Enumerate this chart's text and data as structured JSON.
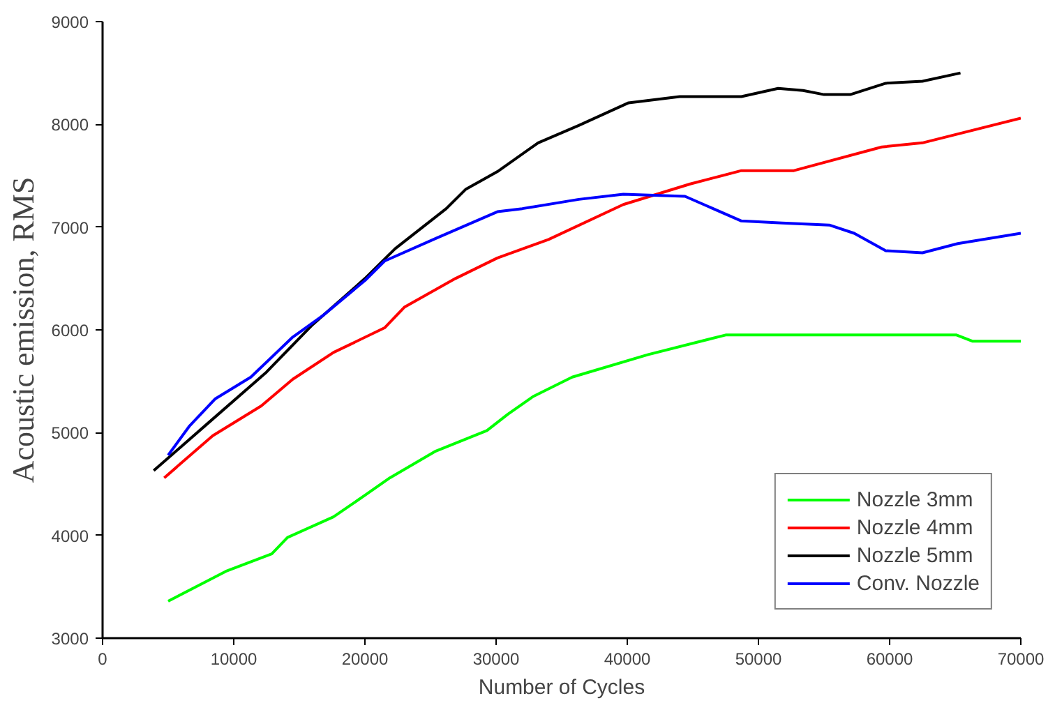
{
  "chart_data": {
    "type": "line",
    "xlabel": "Number of Cycles",
    "ylabel": "Acoustic emission, RMS",
    "xlim": [
      0,
      70000
    ],
    "ylim": [
      3000,
      9000
    ],
    "xticks": [
      0,
      10000,
      20000,
      30000,
      40000,
      50000,
      60000,
      70000
    ],
    "yticks": [
      3000,
      4000,
      5000,
      6000,
      7000,
      8000,
      9000
    ],
    "grid": false,
    "legend": "bottom right",
    "line_style": "solid",
    "marker": "none",
    "series": [
      {
        "name": "Nozzle 3mm",
        "color": "#00ff00",
        "x": [
          5000,
          9400,
          12900,
          14100,
          17600,
          20000,
          21900,
          25400,
          29300,
          30900,
          32800,
          35800,
          41600,
          47500,
          49000,
          65100,
          66300,
          70000
        ],
        "values": [
          3360,
          3650,
          3820,
          3980,
          4180,
          4390,
          4560,
          4820,
          5020,
          5180,
          5350,
          5540,
          5760,
          5950,
          5950,
          5950,
          5890,
          5890
        ]
      },
      {
        "name": "Nozzle 4mm",
        "color": "#ff0000",
        "x": [
          4700,
          8400,
          12100,
          14500,
          17600,
          21500,
          23000,
          26900,
          30100,
          34000,
          39700,
          44800,
          48700,
          52700,
          59400,
          62500,
          70000
        ],
        "values": [
          4560,
          4970,
          5260,
          5520,
          5780,
          6020,
          6220,
          6500,
          6700,
          6880,
          7220,
          7420,
          7550,
          7550,
          7780,
          7820,
          8060
        ]
      },
      {
        "name": "Nozzle 5mm",
        "color": "#000000",
        "x": [
          3900,
          8200,
          12500,
          16000,
          20000,
          22300,
          26200,
          27700,
          30100,
          33200,
          36300,
          40100,
          44000,
          48700,
          51500,
          53400,
          55000,
          57000,
          59700,
          62500,
          65400
        ],
        "values": [
          4630,
          5110,
          5590,
          6050,
          6500,
          6790,
          7180,
          7370,
          7540,
          7820,
          7990,
          8210,
          8270,
          8270,
          8350,
          8330,
          8290,
          8290,
          8400,
          8420,
          8500
        ]
      },
      {
        "name": "Conv. Nozzle",
        "color": "#0000ff",
        "x": [
          5000,
          6600,
          8600,
          11300,
          14500,
          16800,
          20000,
          21500,
          25400,
          30100,
          32000,
          36300,
          39700,
          44400,
          48700,
          51800,
          55400,
          57300,
          59700,
          62500,
          65200,
          70000
        ],
        "values": [
          4780,
          5060,
          5330,
          5540,
          5930,
          6140,
          6480,
          6670,
          6890,
          7150,
          7180,
          7270,
          7320,
          7300,
          7060,
          7040,
          7020,
          6940,
          6770,
          6750,
          6840,
          6940
        ]
      }
    ]
  }
}
